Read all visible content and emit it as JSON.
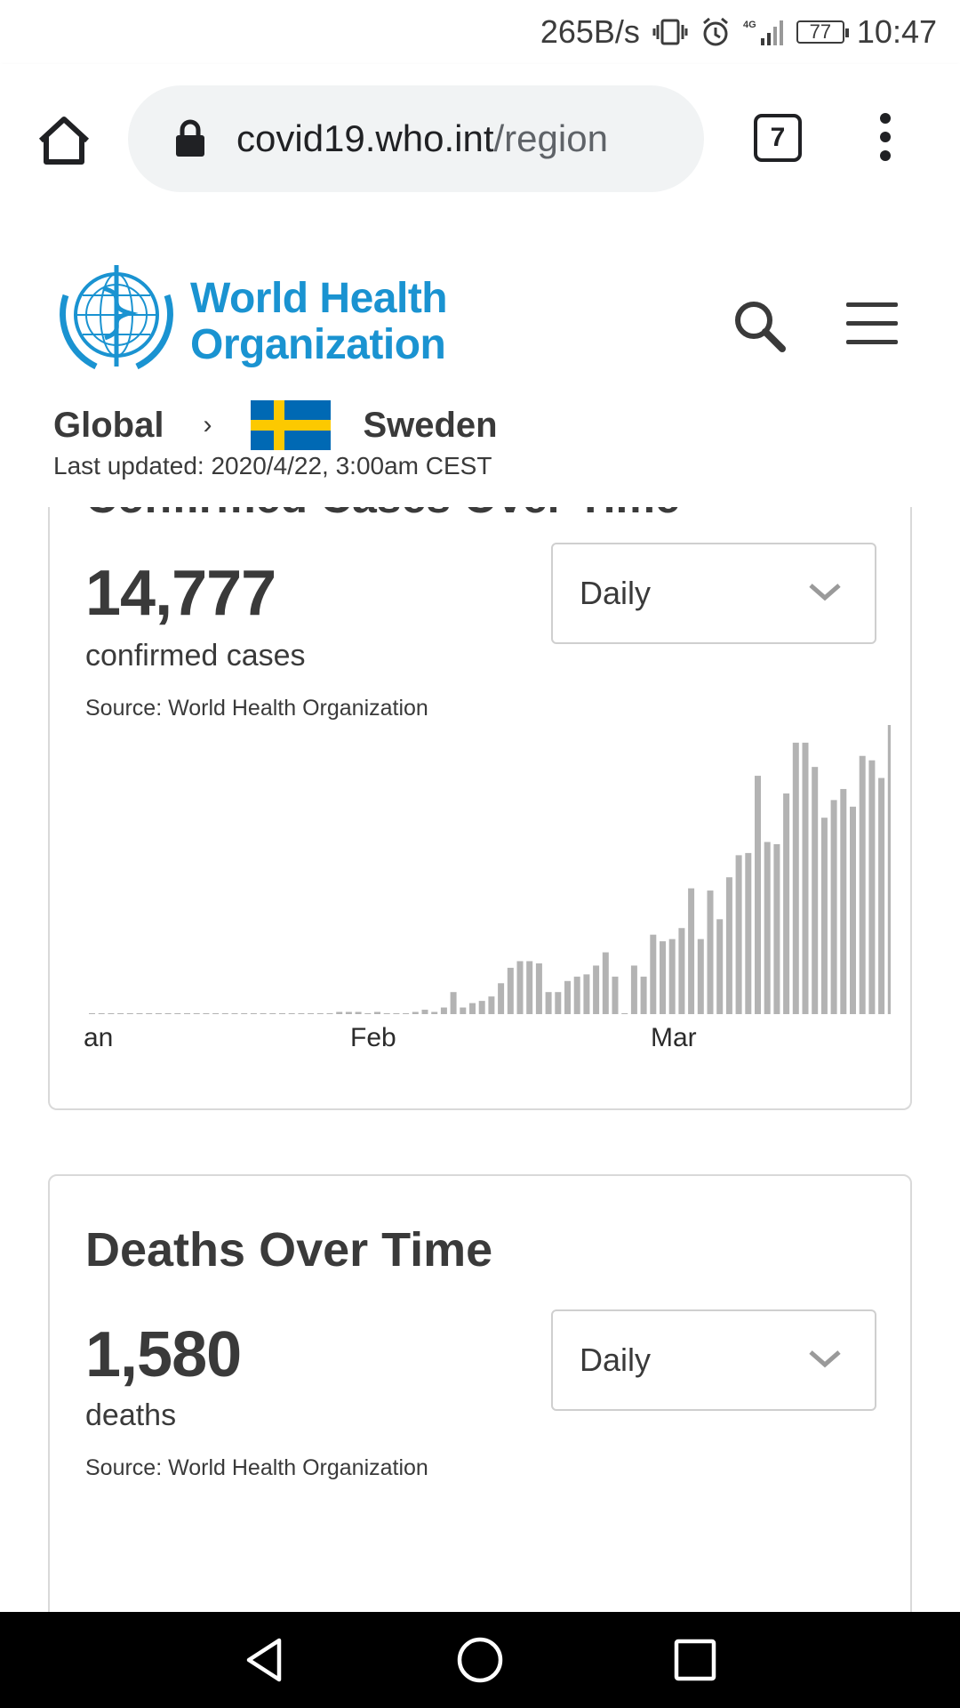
{
  "status_bar": {
    "net_speed": "265B/s",
    "network_type": "4G",
    "battery": "77",
    "time": "10:47"
  },
  "browser": {
    "url_domain": "covid19.who.int",
    "url_path": "/region",
    "tab_count": "7"
  },
  "header": {
    "logo_line1": "World Health",
    "logo_line2": "Organization"
  },
  "breadcrumb": {
    "global": "Global",
    "separator": "›",
    "country": "Sweden",
    "last_updated": "Last updated: 2020/4/22, 3:00am CEST"
  },
  "cases_card": {
    "title": "Confirmed Cases Over Time",
    "count": "14,777",
    "count_label": "confirmed cases",
    "source": "Source:  World Health Organization",
    "period_select": "Daily",
    "x_ticks": [
      "an",
      "Feb",
      "Mar"
    ]
  },
  "deaths_card": {
    "title": "Deaths Over Time",
    "count": "1,580",
    "count_label": "deaths",
    "source": "Source:  World Health Organization",
    "period_select": "Daily"
  },
  "colors": {
    "bar": "#b3b3b3",
    "who_blue": "#1a93d1",
    "text": "#3a3a3a"
  },
  "chart_data": [
    {
      "type": "bar",
      "xlabel": "",
      "ylabel": "",
      "x_ticks": [
        "an",
        "Feb",
        "Mar"
      ],
      "values": [
        0,
        0,
        0,
        0,
        0,
        0,
        0,
        0,
        0,
        0,
        0,
        0,
        0,
        0,
        0,
        0,
        0,
        0,
        0,
        0,
        0,
        0,
        0,
        0,
        0,
        0,
        1,
        1,
        1,
        0,
        1,
        0,
        0,
        0,
        1,
        2,
        1,
        3,
        10,
        3,
        5,
        6,
        8,
        14,
        21,
        24,
        24,
        23,
        10,
        10,
        15,
        17,
        18,
        22,
        28,
        17,
        0,
        22,
        17,
        36,
        33,
        34,
        39,
        57,
        34,
        56,
        43,
        62,
        72,
        73,
        108,
        78,
        77,
        100,
        123,
        123,
        112,
        89,
        97,
        102,
        94,
        117,
        115,
        107,
        131
      ]
    },
    {
      "type": "bar",
      "xlabel": "",
      "ylabel": "",
      "values": [
        0,
        0,
        0,
        0,
        0,
        0,
        0,
        0,
        0,
        0,
        0,
        0,
        0,
        0,
        0,
        0,
        0,
        0,
        0,
        0,
        0,
        0,
        0,
        0,
        0,
        0,
        0,
        0,
        0,
        0,
        0,
        0,
        0,
        0,
        0,
        0,
        0,
        0,
        0,
        0,
        0,
        0,
        0,
        0,
        0,
        0,
        0,
        0,
        0,
        0,
        0,
        0,
        0,
        0,
        0,
        0,
        0,
        0,
        0,
        0,
        0,
        0,
        0,
        0,
        0,
        0,
        0,
        0,
        0,
        0,
        0,
        0,
        0,
        0,
        0,
        0,
        0,
        0,
        0,
        0,
        0,
        0,
        0,
        0,
        0
      ]
    }
  ]
}
